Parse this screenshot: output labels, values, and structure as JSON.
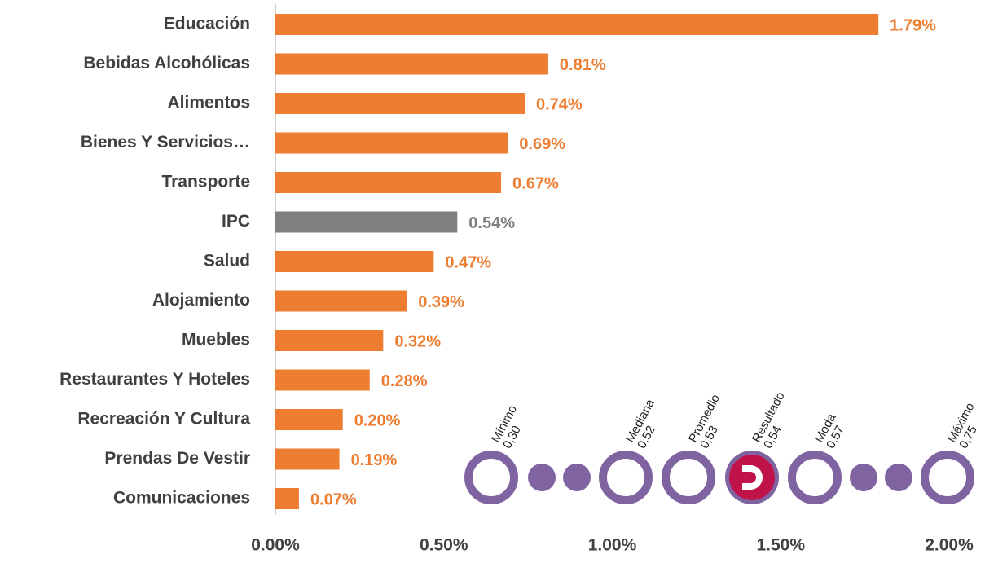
{
  "chart_data": {
    "type": "barh",
    "categories": [
      "Educación",
      "Bebidas Alcohólicas",
      "Alimentos",
      "Bienes Y Servicios…",
      "Transporte",
      "IPC",
      "Salud",
      "Alojamiento",
      "Muebles",
      "Restaurantes Y Hoteles",
      "Recreación Y Cultura",
      "Prendas De Vestir",
      "Comunicaciones"
    ],
    "values": [
      1.79,
      0.81,
      0.74,
      0.69,
      0.67,
      0.54,
      0.47,
      0.39,
      0.32,
      0.28,
      0.2,
      0.19,
      0.07
    ],
    "value_labels": [
      "1.79%",
      "0.81%",
      "0.74%",
      "0.69%",
      "0.67%",
      "0.54%",
      "0.47%",
      "0.39%",
      "0.32%",
      "0.28%",
      "0.20%",
      "0.19%",
      "0.07%"
    ],
    "colors": [
      "#ED7D31",
      "#ED7D31",
      "#ED7D31",
      "#ED7D31",
      "#ED7D31",
      "#7F7F7F",
      "#ED7D31",
      "#ED7D31",
      "#ED7D31",
      "#ED7D31",
      "#ED7D31",
      "#ED7D31",
      "#ED7D31"
    ],
    "xlim": [
      0,
      2
    ],
    "xticks": [
      {
        "value": 0,
        "label": "0.00%"
      },
      {
        "value": 0.5,
        "label": "0.50%"
      },
      {
        "value": 1,
        "label": "1.00%"
      },
      {
        "value": 1.5,
        "label": "1.50%"
      },
      {
        "value": 2,
        "label": "2.00%"
      }
    ],
    "stats": [
      {
        "name": "Mínimo",
        "value": "0,30"
      },
      {
        "name": "Mediana",
        "value": "0,52"
      },
      {
        "name": "Promedio",
        "value": "0,53"
      },
      {
        "name": "Resultado",
        "value": "0,54"
      },
      {
        "name": "Moda",
        "value": "0,57"
      },
      {
        "name": "Máximo",
        "value": "0,75"
      }
    ]
  }
}
